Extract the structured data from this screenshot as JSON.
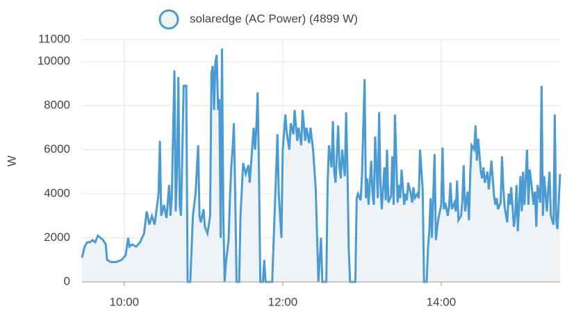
{
  "chart_data": {
    "type": "line",
    "ylabel": "W",
    "xlim": [
      "09:28",
      "15:30"
    ],
    "xticks": [
      "10:00",
      "12:00",
      "14:00"
    ],
    "ylim": [
      0,
      11000
    ],
    "yticks": [
      0,
      2000,
      4000,
      6000,
      8000,
      10000,
      11000
    ],
    "grid": true,
    "x": [
      "09:28",
      "09:30",
      "09:32",
      "09:34",
      "09:36",
      "09:38",
      "09:40",
      "09:42",
      "09:44",
      "09:46",
      "09:47",
      "09:50",
      "09:54",
      "09:58",
      "10:01",
      "10:03",
      "10:04",
      "10:06",
      "10:09",
      "10:12",
      "10:15",
      "10:17",
      "10:19",
      "10:21",
      "10:23",
      "10:26",
      "10:27",
      "10:28",
      "10:30",
      "10:32",
      "10:34",
      "10:35",
      "10:36",
      "10:38",
      "10:39",
      "10:40",
      "10:41",
      "10:42",
      "10:43",
      "10:45",
      "10:47",
      "10:48",
      "10:50",
      "10:52",
      "10:54",
      "10:56",
      "10:57",
      "10:58",
      "11:00",
      "11:01",
      "11:03",
      "11:05",
      "11:06",
      "11:07",
      "11:08",
      "11:09",
      "11:10",
      "11:11",
      "11:12",
      "11:13",
      "11:14",
      "11:15",
      "11:16",
      "11:17",
      "11:19",
      "11:20",
      "11:21",
      "11:22",
      "11:23",
      "11:24",
      "11:25",
      "11:27",
      "11:28",
      "11:30",
      "11:32",
      "11:34",
      "11:35",
      "11:37",
      "11:38",
      "11:39",
      "11:40",
      "11:41",
      "11:42",
      "11:43",
      "11:45",
      "11:46",
      "11:47",
      "11:50",
      "11:52",
      "11:56",
      "11:57",
      "11:59",
      "12:00",
      "12:02",
      "12:03",
      "12:05",
      "12:06",
      "12:08",
      "12:09",
      "12:11",
      "12:12",
      "12:14",
      "12:15",
      "12:17",
      "12:18",
      "12:20",
      "12:21",
      "12:23",
      "12:25",
      "12:27",
      "12:29",
      "12:30",
      "12:33",
      "12:34",
      "12:35",
      "12:37",
      "12:38",
      "12:39",
      "12:40",
      "12:42",
      "12:43",
      "12:44",
      "12:45",
      "12:47",
      "12:48",
      "12:49",
      "12:50",
      "12:51",
      "12:55",
      "12:56",
      "12:57",
      "12:59",
      "13:00",
      "13:02",
      "13:03",
      "13:04",
      "13:05",
      "13:07",
      "13:08",
      "13:09",
      "13:10",
      "13:12",
      "13:13",
      "13:14",
      "13:15",
      "13:17",
      "13:18",
      "13:19",
      "13:20",
      "13:22",
      "13:23",
      "13:24",
      "13:25",
      "13:27",
      "13:28",
      "13:29",
      "13:30",
      "13:32",
      "13:33",
      "13:34",
      "13:35",
      "13:37",
      "13:38",
      "13:39",
      "13:40",
      "13:42",
      "13:43",
      "13:44",
      "13:46",
      "13:47",
      "13:49",
      "13:50",
      "13:51",
      "13:52",
      "13:53",
      "13:55",
      "13:56",
      "13:57",
      "13:58",
      "14:00",
      "14:01",
      "14:02",
      "14:03",
      "14:05",
      "14:06",
      "14:07",
      "14:08",
      "14:10",
      "14:11",
      "14:12",
      "14:13",
      "14:15",
      "14:16",
      "14:17",
      "14:18",
      "14:20",
      "14:21",
      "14:22",
      "14:23",
      "14:25",
      "14:26",
      "14:27",
      "14:28",
      "14:30",
      "14:31",
      "14:32",
      "14:33",
      "14:35",
      "14:36",
      "14:37",
      "14:38",
      "14:40",
      "14:41",
      "14:42",
      "14:43",
      "14:45",
      "14:46",
      "14:47",
      "14:48",
      "14:50",
      "14:51",
      "14:52",
      "14:53",
      "14:55",
      "14:56",
      "14:57",
      "14:58",
      "15:00",
      "15:01",
      "15:02",
      "15:03",
      "15:05",
      "15:06",
      "15:07",
      "15:08",
      "15:10",
      "15:11",
      "15:12",
      "15:13",
      "15:15",
      "15:16",
      "15:17",
      "15:18",
      "15:20",
      "15:21",
      "15:22",
      "15:23",
      "15:25",
      "15:26",
      "15:27",
      "15:28",
      "15:30"
    ],
    "series": [
      {
        "name": "solaredge (AC Power) (4899 W)",
        "color": "#4a9bd4",
        "fill": "#eef3f7",
        "values": [
          1100,
          1600,
          1800,
          1800,
          1900,
          1800,
          2100,
          2000,
          1900,
          1700,
          1000,
          900,
          900,
          1000,
          1200,
          2000,
          1600,
          1700,
          1600,
          1800,
          2200,
          3200,
          2600,
          3000,
          2600,
          4000,
          6400,
          3000,
          3500,
          2900,
          4400,
          3000,
          3800,
          9600,
          3200,
          5200,
          9300,
          3500,
          3000,
          8900,
          8900,
          0,
          0,
          3000,
          4000,
          6200,
          3000,
          2700,
          3300,
          2500,
          2200,
          3000,
          9500,
          9800,
          7800,
          10000,
          10300,
          7800,
          8300,
          2000,
          10600,
          3000,
          0,
          900,
          1900,
          3800,
          5200,
          6000,
          7200,
          4000,
          0,
          0,
          3000,
          5400,
          4900,
          5300,
          4500,
          6200,
          7000,
          6000,
          7000,
          8600,
          5000,
          0,
          0,
          1000,
          0,
          0,
          0,
          6700,
          4000,
          2000,
          6000,
          7600,
          6800,
          6000,
          7200,
          6700,
          7800,
          6400,
          7000,
          6200,
          7800,
          6400,
          7000,
          6300,
          7000,
          6000,
          4200,
          0,
          2000,
          0,
          0,
          4500,
          6200,
          5200,
          7300,
          5000,
          4500,
          7100,
          5200,
          4700,
          6000,
          4800,
          7700,
          5100,
          1500,
          0,
          0,
          3800,
          4000,
          3700,
          4800,
          9200,
          3800,
          4700,
          3500,
          5500,
          4000,
          3500,
          6600,
          3800,
          7700,
          4500,
          3300,
          5200,
          3700,
          6000,
          3600,
          3900,
          5700,
          3500,
          7600,
          3600,
          4400,
          3800,
          5100,
          3500,
          4000,
          3700,
          4500,
          4000,
          3600,
          4300,
          3800,
          4000,
          3800,
          6000,
          4200,
          0,
          0,
          1500,
          2300,
          3800,
          2000,
          5800,
          1900,
          2500,
          2900,
          3500,
          6100,
          3300,
          3600,
          3000,
          3500,
          4500,
          3300,
          3600,
          3200,
          4600,
          2800,
          3000,
          3700,
          5300,
          3200,
          4100,
          2800,
          5000,
          6200,
          6000,
          7100,
          5500,
          6500,
          5000,
          4700,
          5200,
          4500,
          5000,
          4200,
          4800,
          5500,
          3900,
          3500,
          3800,
          3300,
          3600,
          5700,
          4300,
          3400,
          2700,
          4000,
          3500,
          4300,
          2500,
          3000,
          4400,
          2300,
          4800,
          3200,
          5000,
          3500,
          6000,
          3500,
          5100,
          4600,
          3500,
          4100,
          2500,
          4400,
          3600,
          8900,
          3000,
          4800,
          3200,
          4200,
          5000,
          3000,
          2600,
          7600,
          2800,
          2400,
          4900
        ]
      }
    ]
  }
}
